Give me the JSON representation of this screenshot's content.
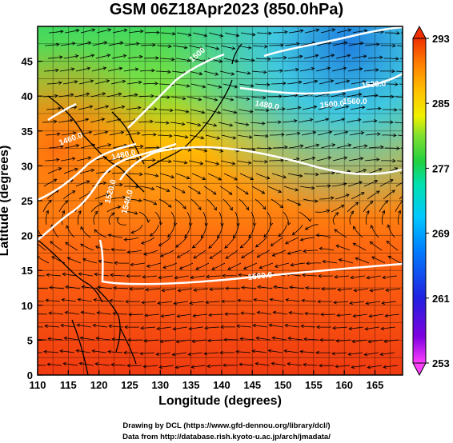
{
  "title": "GSM 06Z18Apr2023 (850.0hPa)",
  "x_axis": {
    "label": "Longitude (degrees)",
    "ticks": [
      "110",
      "115",
      "120",
      "125",
      "130",
      "135",
      "140",
      "145",
      "150",
      "155",
      "160",
      "165"
    ]
  },
  "y_axis": {
    "label": "Latitude  (degrees)",
    "ticks": [
      "0",
      "5",
      "10",
      "15",
      "20",
      "25",
      "30",
      "35",
      "40",
      "45"
    ]
  },
  "colorbar": {
    "ticks": [
      "293",
      "285",
      "277",
      "269",
      "261",
      "253"
    ],
    "colors": [
      "#ff40ff",
      "#8000e0",
      "#2020e0",
      "#0080ff",
      "#00c8ff",
      "#00e0b0",
      "#00d040",
      "#40e040",
      "#b0f000",
      "#f0f000",
      "#ffc000",
      "#ff8000",
      "#ff4000",
      "#f03000"
    ]
  },
  "contour_labels": [
    "1500",
    "1520.0",
    "1540.0",
    "1460.0",
    "1480.0",
    "1500.0",
    "1480.0",
    "1500.0",
    "1520.0",
    "1560.0"
  ],
  "credits": {
    "line1": "Drawing by DCL (https://www.gfd-dennou.org/library/dcl/)",
    "line2": "Data from http://database.rish.kyoto-u.ac.jp/arch/jmadata/"
  }
}
